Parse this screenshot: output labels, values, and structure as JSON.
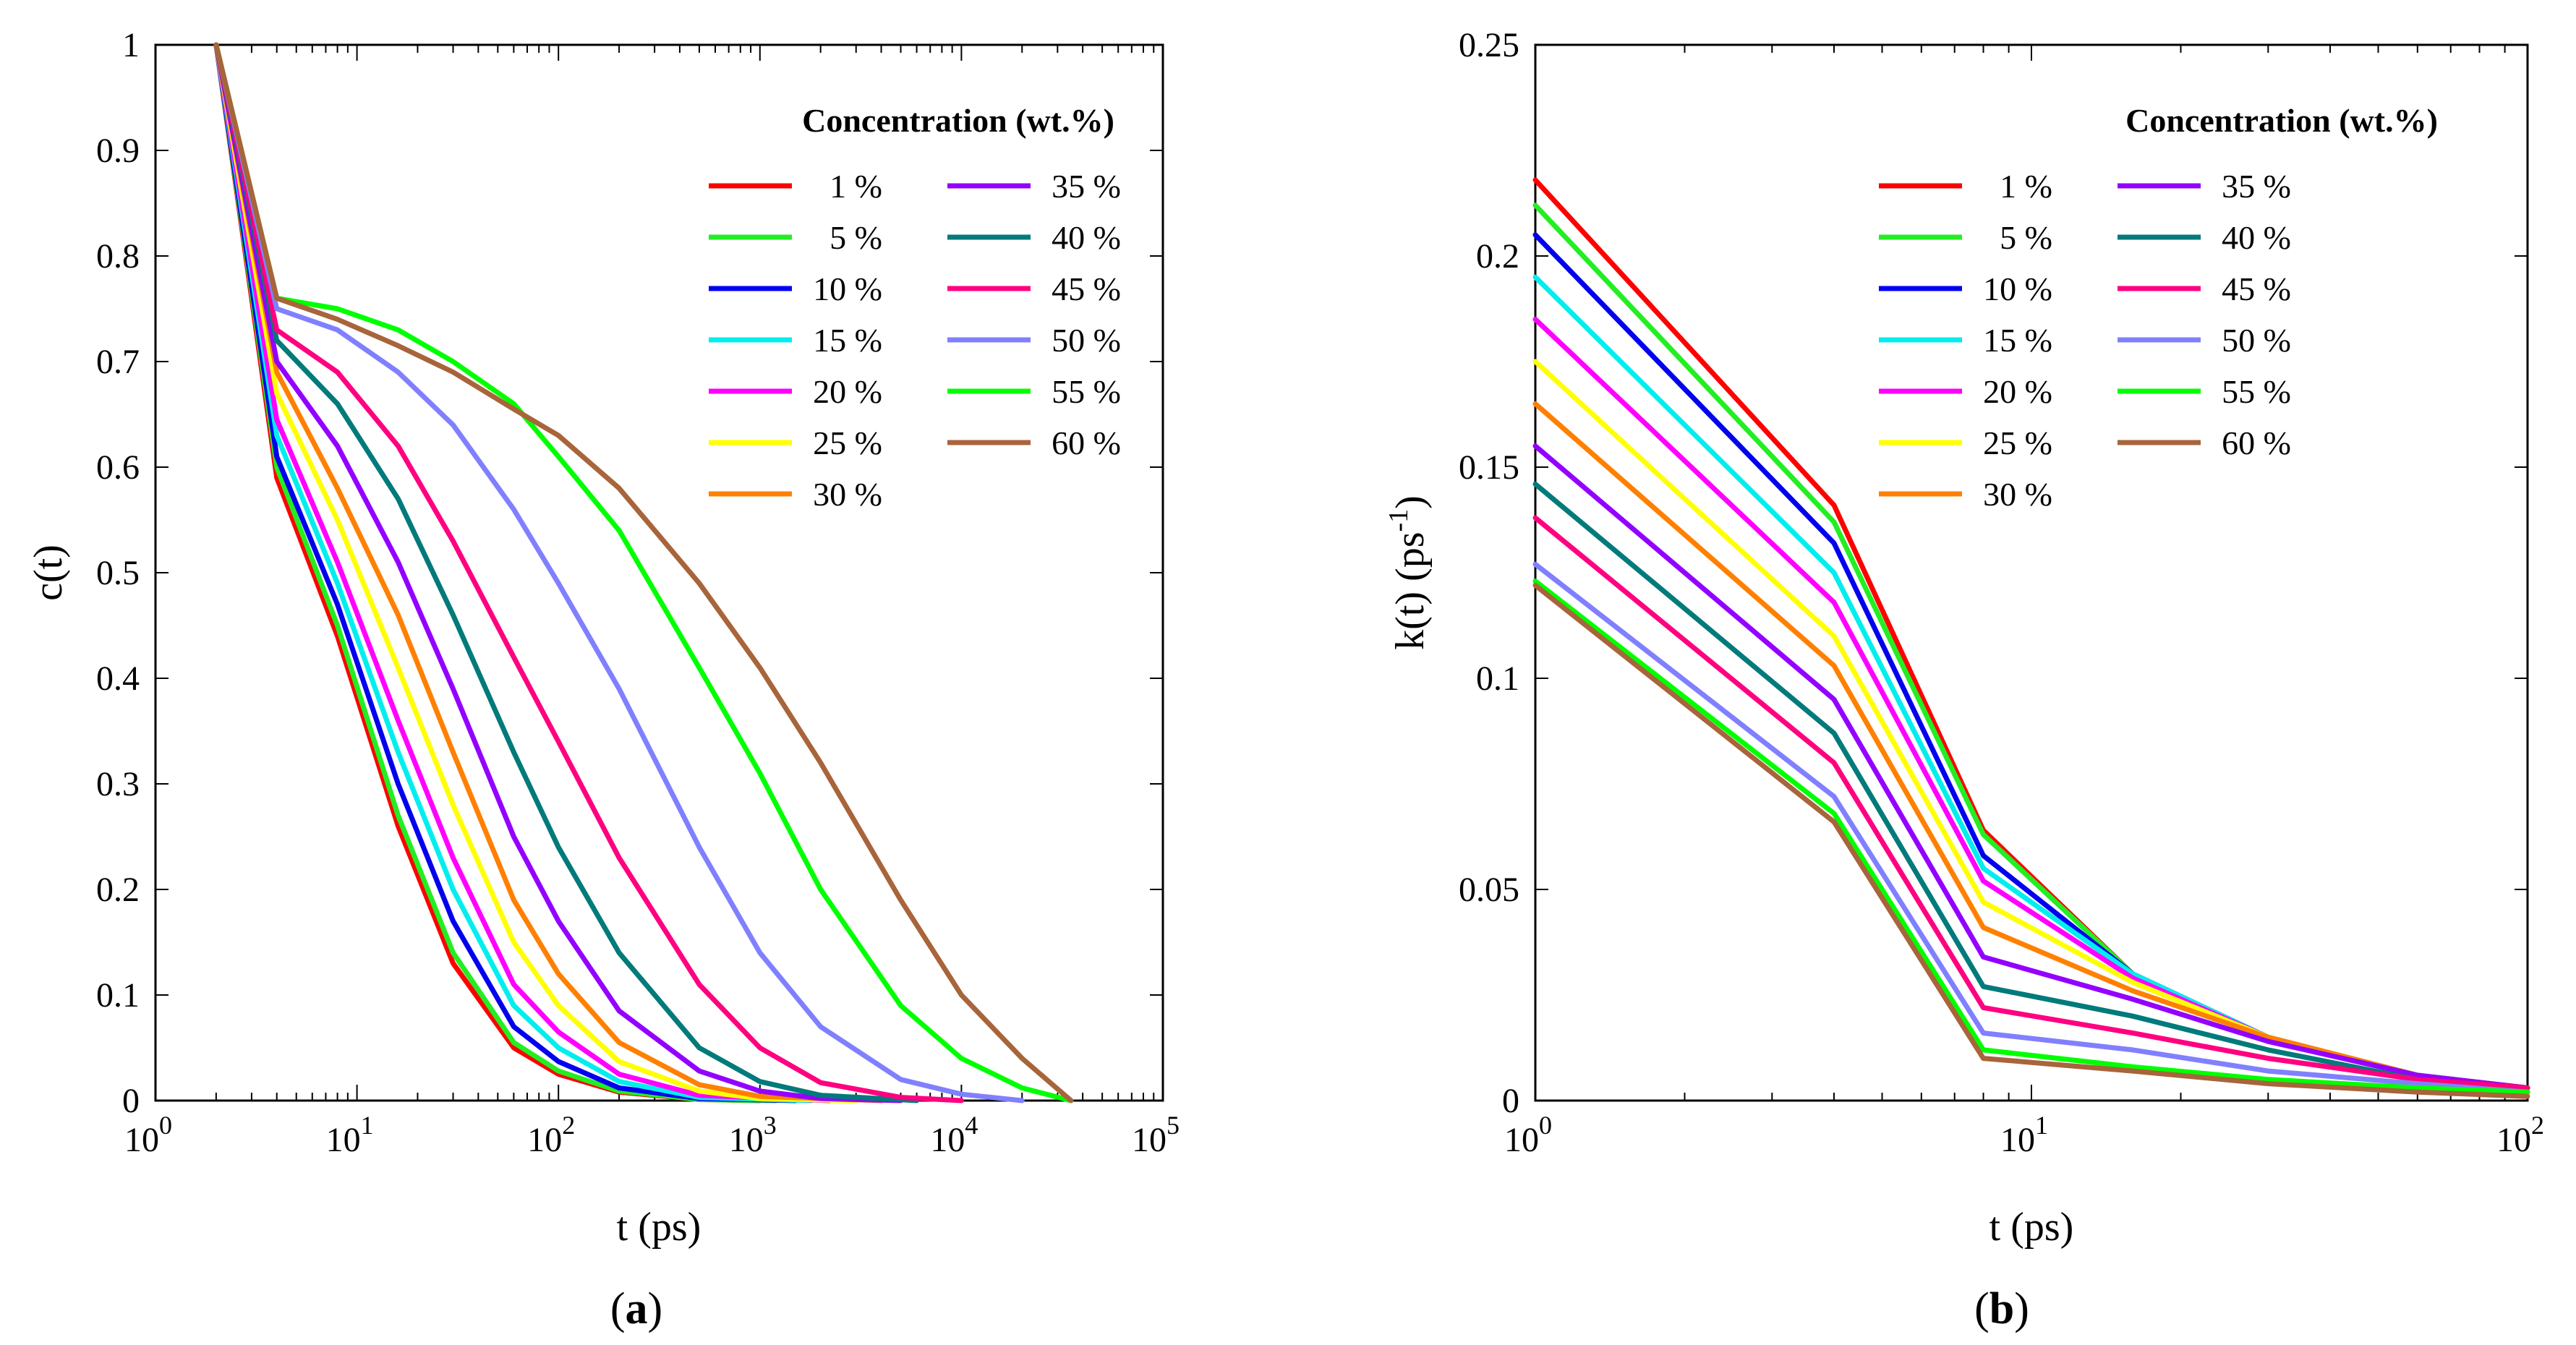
{
  "series_colors": {
    "1 %": "#ff0000",
    "5 %": "#22ee22",
    "10 %": "#0000ee",
    "15 %": "#00eeee",
    "20 %": "#ff00ff",
    "25 %": "#ffff00",
    "30 %": "#ff8000",
    "35 %": "#9400ff",
    "40 %": "#007a7a",
    "45 %": "#ff0080",
    "50 %": "#8080ff",
    "55 %": "#00ff00",
    "60 %": "#a8643a"
  },
  "chart_data": [
    {
      "panel": "a",
      "type": "line",
      "xlabel": "t (ps)",
      "ylabel": "c(t)",
      "xscale": "log",
      "xlim": [
        1,
        100000
      ],
      "ylim": [
        0,
        1
      ],
      "xticks": [
        "10",
        "10",
        "10",
        "10",
        "10",
        "10"
      ],
      "xtick_exponents": [
        "0",
        "1",
        "2",
        "3",
        "4",
        "5"
      ],
      "yticks": [
        "0",
        "0.1",
        "0.2",
        "0.3",
        "0.4",
        "0.5",
        "0.6",
        "0.7",
        "0.8",
        "0.9",
        "1"
      ],
      "legend_title": "Concentration (wt.%)",
      "legend_position": "top-right",
      "series": [
        {
          "name": "1 %",
          "x": [
            2,
            4,
            8,
            16,
            30,
            60,
            100,
            200,
            500,
            1000
          ],
          "y": [
            1,
            0.59,
            0.44,
            0.26,
            0.13,
            0.05,
            0.025,
            0.008,
            0.001,
            0
          ]
        },
        {
          "name": "5 %",
          "x": [
            2,
            4,
            8,
            16,
            30,
            60,
            100,
            200,
            500,
            1200
          ],
          "y": [
            1,
            0.6,
            0.45,
            0.27,
            0.14,
            0.055,
            0.028,
            0.009,
            0.001,
            0
          ]
        },
        {
          "name": "10 %",
          "x": [
            2,
            4,
            8,
            16,
            30,
            60,
            100,
            200,
            500,
            1500
          ],
          "y": [
            1,
            0.61,
            0.47,
            0.3,
            0.17,
            0.07,
            0.037,
            0.012,
            0.002,
            0
          ]
        },
        {
          "name": "15 %",
          "x": [
            2,
            4,
            8,
            16,
            30,
            60,
            100,
            200,
            500,
            1800
          ],
          "y": [
            1,
            0.63,
            0.49,
            0.33,
            0.2,
            0.09,
            0.05,
            0.018,
            0.003,
            0
          ]
        },
        {
          "name": "20 %",
          "x": [
            2,
            4,
            8,
            16,
            30,
            60,
            100,
            200,
            500,
            2200
          ],
          "y": [
            1,
            0.645,
            0.51,
            0.36,
            0.23,
            0.11,
            0.065,
            0.025,
            0.005,
            0
          ]
        },
        {
          "name": "25 %",
          "x": [
            2,
            4,
            8,
            16,
            30,
            60,
            100,
            200,
            500,
            1000,
            3000
          ],
          "y": [
            1,
            0.67,
            0.55,
            0.41,
            0.28,
            0.15,
            0.09,
            0.037,
            0.009,
            0.002,
            0
          ]
        },
        {
          "name": "30 %",
          "x": [
            2,
            4,
            8,
            16,
            30,
            60,
            100,
            200,
            500,
            1000,
            4000
          ],
          "y": [
            1,
            0.69,
            0.58,
            0.46,
            0.33,
            0.19,
            0.12,
            0.055,
            0.015,
            0.004,
            0
          ]
        },
        {
          "name": "35 %",
          "x": [
            2,
            4,
            8,
            16,
            30,
            60,
            100,
            200,
            500,
            1000,
            2000,
            5000
          ],
          "y": [
            1,
            0.7,
            0.62,
            0.51,
            0.39,
            0.25,
            0.17,
            0.085,
            0.028,
            0.009,
            0.002,
            0
          ]
        },
        {
          "name": "40 %",
          "x": [
            2,
            4,
            8,
            16,
            30,
            60,
            100,
            200,
            500,
            1000,
            2000,
            6000
          ],
          "y": [
            1,
            0.72,
            0.66,
            0.57,
            0.46,
            0.33,
            0.24,
            0.14,
            0.05,
            0.018,
            0.005,
            0
          ]
        },
        {
          "name": "45 %",
          "x": [
            2,
            4,
            8,
            16,
            30,
            60,
            100,
            200,
            500,
            1000,
            2000,
            5000,
            10000
          ],
          "y": [
            1,
            0.73,
            0.69,
            0.62,
            0.53,
            0.42,
            0.34,
            0.23,
            0.11,
            0.05,
            0.017,
            0.003,
            0
          ]
        },
        {
          "name": "50 %",
          "x": [
            2,
            4,
            8,
            16,
            30,
            60,
            100,
            200,
            500,
            1000,
            2000,
            5000,
            10000,
            20000
          ],
          "y": [
            1,
            0.75,
            0.73,
            0.69,
            0.64,
            0.56,
            0.49,
            0.39,
            0.24,
            0.14,
            0.07,
            0.02,
            0.006,
            0
          ]
        },
        {
          "name": "55 %",
          "x": [
            2,
            4,
            8,
            16,
            30,
            60,
            100,
            200,
            500,
            1000,
            2000,
            5000,
            10000,
            20000,
            35000
          ],
          "y": [
            1,
            0.76,
            0.75,
            0.73,
            0.7,
            0.66,
            0.61,
            0.54,
            0.41,
            0.31,
            0.2,
            0.09,
            0.04,
            0.012,
            0
          ]
        },
        {
          "name": "60 %",
          "x": [
            2,
            4,
            8,
            16,
            30,
            60,
            100,
            200,
            500,
            1000,
            2000,
            5000,
            10000,
            20000,
            35000
          ],
          "y": [
            1,
            0.76,
            0.74,
            0.715,
            0.69,
            0.655,
            0.63,
            0.58,
            0.49,
            0.41,
            0.32,
            0.19,
            0.1,
            0.04,
            0
          ]
        }
      ]
    },
    {
      "panel": "b",
      "type": "line",
      "xlabel": "t (ps)",
      "ylabel": "k(t) (ps",
      "ylabel_exponent": "-1",
      "ylabel_suffix": ")",
      "xscale": "log",
      "xlim": [
        1,
        100
      ],
      "ylim": [
        0,
        0.25
      ],
      "xticks": [
        "10",
        "10",
        "10"
      ],
      "xtick_exponents": [
        "0",
        "1",
        "2"
      ],
      "yticks": [
        "0",
        "0.05",
        "0.1",
        "0.15",
        "0.2",
        "0.25"
      ],
      "legend_title": "Concentration (wt.%)",
      "legend_position": "top-right",
      "series": [
        {
          "name": "1 %",
          "x": [
            1,
            4,
            8,
            16,
            30,
            60,
            100
          ],
          "y": [
            0.218,
            0.141,
            0.064,
            0.03,
            0.015,
            0.006,
            0.003
          ]
        },
        {
          "name": "5 %",
          "x": [
            1,
            4,
            8,
            16,
            30,
            60,
            100
          ],
          "y": [
            0.212,
            0.137,
            0.063,
            0.03,
            0.015,
            0.006,
            0.003
          ]
        },
        {
          "name": "10 %",
          "x": [
            1,
            4,
            8,
            16,
            30,
            60,
            100
          ],
          "y": [
            0.205,
            0.132,
            0.058,
            0.03,
            0.015,
            0.006,
            0.003
          ]
        },
        {
          "name": "15 %",
          "x": [
            1,
            4,
            8,
            16,
            30,
            60,
            100
          ],
          "y": [
            0.195,
            0.125,
            0.055,
            0.03,
            0.015,
            0.006,
            0.003
          ]
        },
        {
          "name": "20 %",
          "x": [
            1,
            4,
            8,
            16,
            30,
            60,
            100
          ],
          "y": [
            0.185,
            0.118,
            0.052,
            0.029,
            0.015,
            0.006,
            0.003
          ]
        },
        {
          "name": "25 %",
          "x": [
            1,
            4,
            8,
            16,
            30,
            60,
            100
          ],
          "y": [
            0.175,
            0.11,
            0.047,
            0.028,
            0.015,
            0.006,
            0.003
          ]
        },
        {
          "name": "30 %",
          "x": [
            1,
            4,
            8,
            16,
            30,
            60,
            100
          ],
          "y": [
            0.165,
            0.103,
            0.041,
            0.026,
            0.015,
            0.006,
            0.003
          ]
        },
        {
          "name": "35 %",
          "x": [
            1,
            4,
            8,
            16,
            30,
            60,
            100
          ],
          "y": [
            0.155,
            0.095,
            0.034,
            0.024,
            0.014,
            0.006,
            0.003
          ]
        },
        {
          "name": "40 %",
          "x": [
            1,
            4,
            8,
            16,
            30,
            60,
            100
          ],
          "y": [
            0.146,
            0.087,
            0.027,
            0.02,
            0.012,
            0.005,
            0.003
          ]
        },
        {
          "name": "45 %",
          "x": [
            1,
            4,
            8,
            16,
            30,
            60,
            100
          ],
          "y": [
            0.138,
            0.08,
            0.022,
            0.016,
            0.01,
            0.005,
            0.003
          ]
        },
        {
          "name": "50 %",
          "x": [
            1,
            4,
            8,
            16,
            30,
            60,
            100
          ],
          "y": [
            0.127,
            0.072,
            0.016,
            0.012,
            0.007,
            0.004,
            0.002
          ]
        },
        {
          "name": "55 %",
          "x": [
            1,
            4,
            8,
            16,
            30,
            60,
            100
          ],
          "y": [
            0.123,
            0.068,
            0.012,
            0.008,
            0.005,
            0.003,
            0.002
          ]
        },
        {
          "name": "60 %",
          "x": [
            1,
            4,
            8,
            16,
            30,
            60,
            100
          ],
          "y": [
            0.122,
            0.066,
            0.01,
            0.007,
            0.004,
            0.002,
            0.001
          ]
        }
      ]
    }
  ],
  "captions": {
    "a_label": "a",
    "b_label": "b"
  }
}
